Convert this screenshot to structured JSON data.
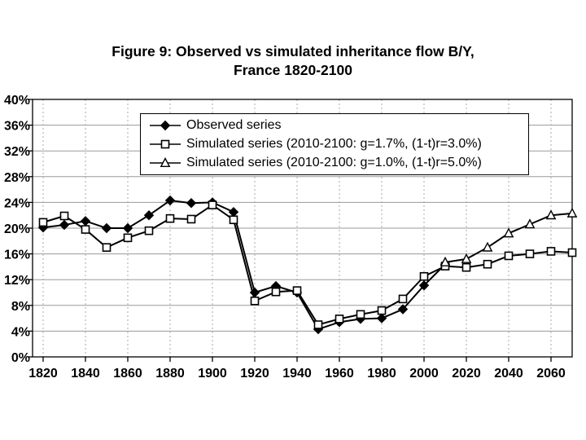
{
  "title": {
    "line1": "Figure 9: Observed vs simulated inheritance flow B/Y,",
    "line2": "France 1820-2100"
  },
  "colors": {
    "background": "#ffffff",
    "line": "#000000",
    "grid_horizontal": "#9a9a9a",
    "grid_vertical": "#a8a8a8"
  },
  "chart_data": {
    "type": "line",
    "title": "Figure 9: Observed vs simulated inheritance flow B/Y, France 1820-2100",
    "xlabel": "",
    "ylabel": "",
    "ylim": [
      0,
      40
    ],
    "y_tick_step": 4,
    "y_tick_suffix": "%",
    "x_ticks": [
      1820,
      1840,
      1860,
      1880,
      1900,
      1920,
      1940,
      1960,
      1980,
      2000,
      2020,
      2040,
      2060
    ],
    "x_range": [
      1815,
      2070
    ],
    "grid": {
      "horizontal": "solid",
      "vertical": "dashed"
    },
    "legend_position": "top-center-inside",
    "series": [
      {
        "name": "Observed series",
        "marker": "diamond",
        "marker_fill": "black",
        "start_year": 1820,
        "step": 10,
        "values": [
          20.1,
          20.5,
          21.1,
          20.0,
          20.0,
          22.0,
          24.3,
          23.9,
          24.0,
          22.5,
          10.0,
          11.0,
          10.0,
          4.3,
          5.4,
          5.9,
          6.0,
          7.4,
          11.1,
          14.4
        ]
      },
      {
        "name": "Simulated series (2010-2100: g=1.7%, (1-t)r=3.0%)",
        "marker": "square",
        "marker_fill": "white",
        "start_year": 1820,
        "step": 10,
        "values": [
          20.9,
          21.9,
          19.8,
          17.0,
          18.5,
          19.6,
          21.5,
          21.4,
          23.6,
          21.3,
          8.7,
          10.1,
          10.3,
          5.0,
          5.9,
          6.6,
          7.2,
          9.0,
          12.5,
          14.1,
          13.9,
          14.4,
          15.7,
          16.0,
          16.4,
          16.2
        ]
      },
      {
        "name": "Simulated series (2010-2100: g=1.0%, (1-t)r=5.0%)",
        "marker": "triangle",
        "marker_fill": "white",
        "start_year": 2010,
        "step": 10,
        "values": [
          14.7,
          15.2,
          17.0,
          19.2,
          20.6,
          22.0,
          22.3
        ]
      }
    ]
  }
}
